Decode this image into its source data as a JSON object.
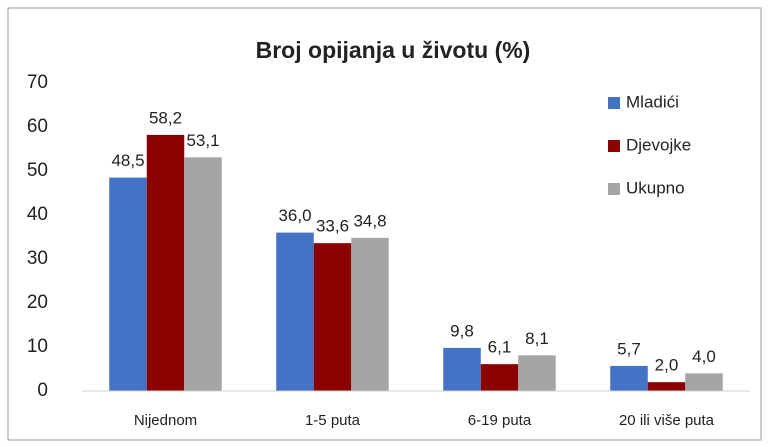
{
  "chart_data": {
    "type": "bar",
    "title": "Broj opijanja u životu (%)",
    "categories": [
      "Nijednom",
      "1-5 puta",
      "6-19 puta",
      "20 ili više puta"
    ],
    "series": [
      {
        "name": "Mladići",
        "color": "#4472c4",
        "values": [
          48.5,
          36.0,
          9.8,
          5.7
        ],
        "value_labels": [
          "48,5",
          "36,0",
          "9,8",
          "5,7"
        ]
      },
      {
        "name": "Djevojke",
        "color": "#8b0000",
        "values": [
          58.2,
          33.6,
          6.1,
          2.0
        ],
        "value_labels": [
          "58,2",
          "33,6",
          "6,1",
          "2,0"
        ]
      },
      {
        "name": "Ukupno",
        "color": "#a5a5a5",
        "values": [
          53.1,
          34.8,
          8.1,
          4.0
        ],
        "value_labels": [
          "53,1",
          "34,8",
          "8,1",
          "4,0"
        ]
      }
    ],
    "ylim": [
      0,
      70
    ],
    "yticks": [
      0,
      10,
      20,
      30,
      40,
      50,
      60,
      70
    ],
    "grid": false,
    "legend": "right"
  }
}
